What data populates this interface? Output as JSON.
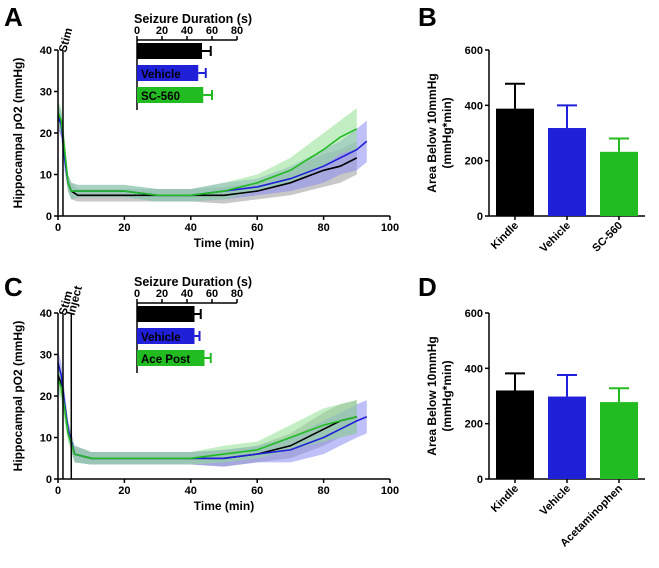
{
  "panels": {
    "A": {
      "letter": "A"
    },
    "B": {
      "letter": "B"
    },
    "C": {
      "letter": "C"
    },
    "D": {
      "letter": "D"
    }
  },
  "chart_data": [
    {
      "id": "A",
      "type": "line",
      "title": "",
      "xlabel": "Time (min)",
      "ylabel": "Hippocampal pO2 (mmHg)",
      "xlim": [
        0,
        100
      ],
      "ylim": [
        0,
        40
      ],
      "xticks": [
        0,
        20,
        40,
        60,
        80,
        100
      ],
      "yticks": [
        0,
        10,
        20,
        30,
        40
      ],
      "annotations": [
        {
          "text": "Stim",
          "x": 1.5
        }
      ],
      "series": [
        {
          "name": "Kindle",
          "color": "#000000",
          "band": "#9a9a9a",
          "x": [
            0,
            1,
            2,
            3,
            4,
            6,
            10,
            20,
            30,
            40,
            50,
            60,
            70,
            80,
            85,
            90
          ],
          "y": [
            24,
            22,
            15,
            8,
            6,
            5,
            5,
            5,
            5,
            5,
            5,
            6,
            8,
            11,
            12,
            14
          ],
          "err": [
            3,
            3,
            3,
            2,
            2,
            1.5,
            1.5,
            1.5,
            1.5,
            1.5,
            2,
            2,
            3,
            4,
            4,
            4
          ]
        },
        {
          "name": "Vehicle",
          "color": "#2020d8",
          "band": "#8c8cf2",
          "x": [
            0,
            1,
            2,
            3,
            4,
            6,
            10,
            20,
            30,
            40,
            50,
            60,
            70,
            80,
            85,
            90,
            93
          ],
          "y": [
            24,
            22,
            14,
            8,
            6,
            6,
            6,
            6,
            5,
            5,
            6,
            7,
            9,
            12,
            14,
            16,
            18
          ],
          "err": [
            3,
            3,
            3,
            2,
            2,
            1.5,
            1.5,
            1.5,
            1.5,
            1.5,
            2,
            2,
            3,
            4,
            4,
            5,
            5
          ]
        },
        {
          "name": "SC-560",
          "color": "#22bb22",
          "band": "#92e092",
          "x": [
            0,
            1,
            2,
            3,
            4,
            6,
            10,
            20,
            30,
            40,
            50,
            60,
            70,
            80,
            85,
            90
          ],
          "y": [
            25,
            23,
            16,
            8,
            6,
            6,
            6,
            6,
            5,
            5,
            6,
            8,
            11,
            16,
            19,
            21
          ],
          "err": [
            3,
            3,
            3,
            2,
            2,
            1.5,
            1.5,
            1.5,
            1.5,
            1.5,
            2,
            2,
            3,
            4,
            4,
            5
          ]
        }
      ],
      "inset": {
        "type": "bar",
        "orientation": "horizontal",
        "title": "Seizure Duration (s)",
        "xlim": [
          0,
          80
        ],
        "xticks": [
          0,
          20,
          40,
          60,
          80
        ],
        "categories": [
          "Kindle",
          "Vehicle",
          "SC-560"
        ],
        "values": [
          52,
          49,
          53
        ],
        "errors": [
          7,
          6,
          7
        ],
        "colors": [
          "#000000",
          "#2020d8",
          "#22bb22"
        ]
      }
    },
    {
      "id": "B",
      "type": "bar",
      "title": "",
      "xlabel": "",
      "ylabel": "Area Below 10mmHg\n(mmHg*min)",
      "ylim": [
        0,
        600
      ],
      "yticks": [
        0,
        200,
        400,
        600
      ],
      "categories": [
        "Kindle",
        "Vehicle",
        "SC-560"
      ],
      "values": [
        388,
        318,
        232
      ],
      "errors": [
        90,
        82,
        48
      ],
      "colors": [
        "#000000",
        "#2020d8",
        "#22bb22"
      ]
    },
    {
      "id": "C",
      "type": "line",
      "title": "",
      "xlabel": "Time (min)",
      "ylabel": "Hippocampal pO2 (mmHg)",
      "xlim": [
        0,
        100
      ],
      "ylim": [
        0,
        40
      ],
      "xticks": [
        0,
        20,
        40,
        60,
        80,
        100
      ],
      "yticks": [
        0,
        10,
        20,
        30,
        40
      ],
      "annotations": [
        {
          "text": "Stim",
          "x": 1.5
        },
        {
          "text": "Inject",
          "x": 4
        }
      ],
      "series": [
        {
          "name": "Kindle",
          "color": "#000000",
          "band": "#9a9a9a",
          "x": [
            0,
            1,
            2,
            3,
            5,
            10,
            20,
            30,
            40,
            50,
            60,
            70,
            80,
            85,
            90
          ],
          "y": [
            25,
            23,
            18,
            12,
            6,
            5,
            5,
            5,
            5,
            5,
            6,
            8,
            12,
            14,
            15
          ],
          "err": [
            3,
            3,
            3,
            2,
            2,
            1.5,
            1.5,
            1.5,
            1.5,
            2,
            2,
            3,
            4,
            4,
            4
          ]
        },
        {
          "name": "Vehicle",
          "color": "#2020d8",
          "band": "#8c8cf2",
          "x": [
            0,
            1,
            2,
            3,
            5,
            10,
            20,
            30,
            40,
            50,
            60,
            70,
            80,
            85,
            90,
            93
          ],
          "y": [
            28,
            25,
            18,
            12,
            6,
            5,
            5,
            5,
            5,
            5,
            6,
            7,
            10,
            12,
            14,
            15
          ],
          "err": [
            3,
            3,
            3,
            2,
            2,
            1.5,
            1.5,
            1.5,
            1.5,
            2,
            2,
            3,
            4,
            4,
            4,
            4
          ]
        },
        {
          "name": "Ace Post",
          "color": "#22bb22",
          "band": "#92e092",
          "x": [
            0,
            1,
            2,
            3,
            5,
            10,
            20,
            30,
            40,
            50,
            60,
            70,
            80,
            85,
            90
          ],
          "y": [
            24,
            22,
            17,
            11,
            6,
            5,
            5,
            5,
            5,
            6,
            7,
            10,
            13,
            14,
            15
          ],
          "err": [
            3,
            3,
            3,
            2,
            2,
            1.5,
            1.5,
            1.5,
            1.5,
            2,
            2,
            3,
            4,
            4,
            4
          ]
        }
      ],
      "inset": {
        "type": "bar",
        "orientation": "horizontal",
        "title": "Seizure Duration (s)",
        "xlim": [
          0,
          80
        ],
        "xticks": [
          0,
          20,
          40,
          60,
          80
        ],
        "categories": [
          "Kindle",
          "Vehicle",
          "Ace Post"
        ],
        "values": [
          46,
          46,
          54
        ],
        "errors": [
          5,
          4,
          5
        ],
        "colors": [
          "#000000",
          "#2020d8",
          "#22bb22"
        ]
      }
    },
    {
      "id": "D",
      "type": "bar",
      "title": "",
      "xlabel": "",
      "ylabel": "Area Below 10mmHg\n(mmHg*min)",
      "ylim": [
        0,
        600
      ],
      "yticks": [
        0,
        200,
        400,
        600
      ],
      "categories": [
        "Kindle",
        "Vehicle",
        "Acetaminophen"
      ],
      "values": [
        320,
        298,
        278
      ],
      "errors": [
        62,
        78,
        50
      ],
      "colors": [
        "#000000",
        "#2020d8",
        "#22bb22"
      ]
    }
  ]
}
